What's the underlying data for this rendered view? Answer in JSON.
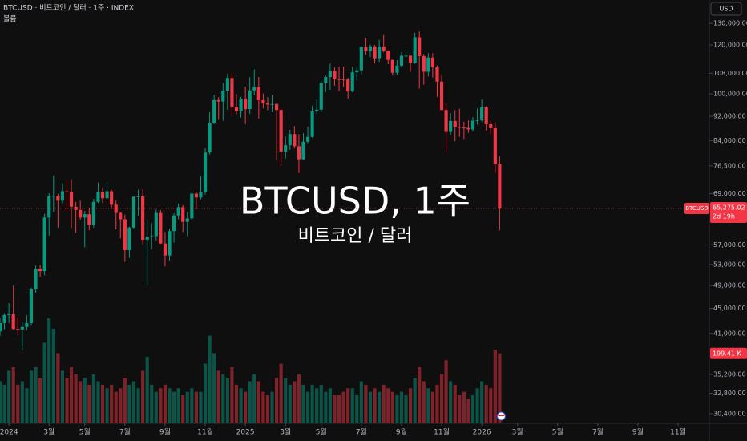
{
  "chart_data": {
    "type": "candlestick",
    "title": "BTCUSD · 비트코인 / 달러 · 1주 · INDEX",
    "volume_title": "볼륨",
    "watermark": "BTCUSD, 1주",
    "watermark_subtitle": "비트코인 / 달러",
    "currency": "USD",
    "symbol": "BTCUSD",
    "last_price": 65275.02,
    "last_price_label": "65,275.02",
    "countdown": "2d 19h",
    "volume_label": "199.41 K",
    "up_color": "#089981",
    "down_color": "#f23645",
    "log_scale": true,
    "ylim": [
      29330,
      141850
    ],
    "yticks": [
      {
        "value": 30400,
        "label": "30,400.00"
      },
      {
        "value": 32800,
        "label": "32,800.00"
      },
      {
        "value": 35200,
        "label": "35,200.00"
      },
      {
        "value": 41000,
        "label": "41,000.00"
      },
      {
        "value": 45000,
        "label": "45,000.00"
      },
      {
        "value": 49000,
        "label": "49,000.00"
      },
      {
        "value": 53000,
        "label": "53,000.00"
      },
      {
        "value": 57000,
        "label": "57,000.00"
      },
      {
        "value": 69000,
        "label": "69,000.00"
      },
      {
        "value": 76500,
        "label": "76,500.00"
      },
      {
        "value": 84000,
        "label": "84,000.00"
      },
      {
        "value": 92000,
        "label": "92,000.00"
      },
      {
        "value": 100000,
        "label": "100,000.00"
      },
      {
        "value": 108000,
        "label": "108,000.00"
      },
      {
        "value": 120000,
        "label": "120,000.00"
      },
      {
        "value": 130000,
        "label": "130,000.00"
      }
    ],
    "xlim": [
      -2,
      157
    ],
    "xticks": [
      {
        "value": 0,
        "label": "2024"
      },
      {
        "value": 9,
        "label": "3월"
      },
      {
        "value": 17,
        "label": "5월"
      },
      {
        "value": 26,
        "label": "7월"
      },
      {
        "value": 35,
        "label": "9월"
      },
      {
        "value": 44,
        "label": "11월"
      },
      {
        "value": 53,
        "label": "2025"
      },
      {
        "value": 62,
        "label": "3월"
      },
      {
        "value": 70,
        "label": "5월"
      },
      {
        "value": 79,
        "label": "7월"
      },
      {
        "value": 88,
        "label": "9월"
      },
      {
        "value": 97,
        "label": "11월"
      },
      {
        "value": 106,
        "label": "2026"
      },
      {
        "value": 114,
        "label": "3월"
      },
      {
        "value": 123,
        "label": "5월"
      },
      {
        "value": 132,
        "label": "7월"
      },
      {
        "value": 141,
        "label": "9월"
      },
      {
        "value": 150,
        "label": "11월"
      }
    ],
    "vlim": [
      0,
      320
    ],
    "x": [
      -2,
      -1,
      0,
      1,
      2,
      3,
      4,
      5,
      6,
      7,
      8,
      9,
      10,
      11,
      12,
      13,
      14,
      15,
      16,
      17,
      18,
      19,
      20,
      21,
      22,
      23,
      24,
      25,
      26,
      27,
      28,
      29,
      30,
      31,
      32,
      33,
      34,
      35,
      36,
      37,
      38,
      39,
      40,
      41,
      42,
      43,
      44,
      45,
      46,
      47,
      48,
      49,
      50,
      51,
      52,
      53,
      54,
      55,
      56,
      57,
      58,
      59,
      60,
      61,
      62,
      63,
      64,
      65,
      66,
      67,
      68,
      69,
      70,
      71,
      72,
      73,
      74,
      75,
      76,
      77,
      78,
      79,
      80,
      81,
      82,
      83,
      84,
      85,
      86,
      87,
      88,
      89,
      90,
      91,
      92,
      93,
      94,
      95,
      96,
      97,
      98,
      99,
      100,
      101,
      102,
      103,
      104,
      105,
      106,
      107,
      108,
      109,
      110
    ],
    "ohlc": [
      [
        41300,
        43400,
        40600,
        42600
      ],
      [
        42600,
        44200,
        41600,
        43900
      ],
      [
        43900,
        45900,
        42600,
        44100
      ],
      [
        44100,
        49000,
        41500,
        41700
      ],
      [
        41700,
        43500,
        40700,
        41600
      ],
      [
        41600,
        42800,
        38500,
        42000
      ],
      [
        42000,
        43900,
        41500,
        42600
      ],
      [
        42600,
        48600,
        42300,
        48300
      ],
      [
        48300,
        52800,
        47700,
        52100
      ],
      [
        52100,
        52900,
        50600,
        51700
      ],
      [
        51700,
        64000,
        50900,
        63100
      ],
      [
        63100,
        69100,
        59000,
        68300
      ],
      [
        68300,
        73800,
        64500,
        68400
      ],
      [
        68400,
        68900,
        60800,
        67200
      ],
      [
        67200,
        71700,
        66500,
        69600
      ],
      [
        69600,
        72700,
        64500,
        69400
      ],
      [
        69400,
        72800,
        60700,
        65700
      ],
      [
        65700,
        66900,
        59600,
        64900
      ],
      [
        64900,
        67200,
        62600,
        63100
      ],
      [
        63100,
        64700,
        56500,
        63900
      ],
      [
        63900,
        65500,
        60200,
        61500
      ],
      [
        61500,
        67700,
        60800,
        66900
      ],
      [
        66900,
        71900,
        66600,
        69300
      ],
      [
        69300,
        70600,
        66600,
        67800
      ],
      [
        67800,
        71900,
        67600,
        69600
      ],
      [
        69600,
        70000,
        65100,
        66200
      ],
      [
        66200,
        67200,
        60400,
        64200
      ],
      [
        64200,
        64500,
        58400,
        62700
      ],
      [
        62700,
        63800,
        53500,
        55900
      ],
      [
        55900,
        61000,
        54300,
        60800
      ],
      [
        60800,
        68300,
        60600,
        68200
      ],
      [
        68200,
        70000,
        63500,
        68300
      ],
      [
        68300,
        70100,
        57100,
        58100
      ],
      [
        58100,
        62700,
        49100,
        58700
      ],
      [
        58700,
        61800,
        56100,
        58900
      ],
      [
        58900,
        65000,
        57900,
        64200
      ],
      [
        64200,
        64900,
        57200,
        57300
      ],
      [
        57300,
        59800,
        52600,
        54800
      ],
      [
        54800,
        60600,
        53700,
        60000
      ],
      [
        60000,
        64100,
        57500,
        63600
      ],
      [
        63600,
        66500,
        62700,
        65600
      ],
      [
        65600,
        66100,
        59800,
        62100
      ],
      [
        62100,
        64500,
        58900,
        62900
      ],
      [
        62900,
        69400,
        62500,
        69000
      ],
      [
        69000,
        69500,
        65100,
        68000
      ],
      [
        68000,
        73600,
        67500,
        69400
      ],
      [
        69400,
        81800,
        68800,
        80400
      ],
      [
        80400,
        93400,
        79800,
        89800
      ],
      [
        89800,
        99600,
        89300,
        97700
      ],
      [
        97700,
        98800,
        90800,
        97200
      ],
      [
        97200,
        104000,
        90500,
        101200
      ],
      [
        101200,
        107800,
        94200,
        106100
      ],
      [
        106100,
        108300,
        92200,
        95200
      ],
      [
        95200,
        99900,
        92700,
        93700
      ],
      [
        93700,
        98900,
        91500,
        98300
      ],
      [
        98300,
        102700,
        89300,
        94500
      ],
      [
        94500,
        106400,
        92800,
        101300
      ],
      [
        101300,
        109500,
        99500,
        102600
      ],
      [
        102600,
        106500,
        91200,
        97700
      ],
      [
        97700,
        100100,
        94700,
        96500
      ],
      [
        96500,
        98800,
        94100,
        96100
      ],
      [
        96100,
        99500,
        93400,
        96300
      ],
      [
        96300,
        96500,
        78200,
        94200
      ],
      [
        94200,
        94400,
        76600,
        80700
      ],
      [
        80700,
        85300,
        78600,
        82600
      ],
      [
        82600,
        87500,
        81200,
        86100
      ],
      [
        86100,
        88700,
        81600,
        82300
      ],
      [
        82300,
        86100,
        74500,
        78400
      ],
      [
        78400,
        86400,
        78300,
        83700
      ],
      [
        83700,
        88500,
        83200,
        85200
      ],
      [
        85200,
        95700,
        84900,
        93700
      ],
      [
        93700,
        97900,
        92800,
        94300
      ],
      [
        94300,
        105000,
        93400,
        104100
      ],
      [
        104100,
        107100,
        100700,
        106500
      ],
      [
        106500,
        112000,
        101500,
        109000
      ],
      [
        109000,
        110400,
        103100,
        105700
      ],
      [
        105700,
        110700,
        101000,
        105600
      ],
      [
        105600,
        110700,
        102600,
        105500
      ],
      [
        105500,
        106100,
        98200,
        100900
      ],
      [
        100900,
        110600,
        100600,
        108400
      ],
      [
        108400,
        110500,
        105100,
        109200
      ],
      [
        109200,
        119500,
        107500,
        119100
      ],
      [
        119100,
        123200,
        115700,
        117300
      ],
      [
        117300,
        120200,
        114700,
        119400
      ],
      [
        119400,
        120000,
        112000,
        114200
      ],
      [
        114200,
        122300,
        112700,
        119300
      ],
      [
        119300,
        124500,
        116800,
        117400
      ],
      [
        117400,
        117600,
        111700,
        113500
      ],
      [
        113500,
        113600,
        107300,
        108200
      ],
      [
        108200,
        113400,
        107300,
        111100
      ],
      [
        111100,
        116800,
        110600,
        115300
      ],
      [
        115300,
        117900,
        114400,
        115300
      ],
      [
        115300,
        115400,
        108600,
        112200
      ],
      [
        112200,
        125600,
        111800,
        123500
      ],
      [
        123500,
        126200,
        102000,
        115100
      ],
      [
        115100,
        116000,
        103500,
        108600
      ],
      [
        108600,
        116400,
        106700,
        114500
      ],
      [
        114500,
        116400,
        106300,
        110500
      ],
      [
        110500,
        111200,
        98900,
        104700
      ],
      [
        104700,
        107500,
        94000,
        94200
      ],
      [
        94200,
        96600,
        80600,
        86800
      ],
      [
        86800,
        93100,
        85900,
        90400
      ],
      [
        90400,
        94200,
        83800,
        88400
      ],
      [
        88400,
        94600,
        85200,
        88200
      ],
      [
        88200,
        90200,
        84500,
        88100
      ],
      [
        88100,
        90600,
        86500,
        87600
      ],
      [
        87600,
        91700,
        86900,
        90500
      ],
      [
        90500,
        94700,
        89200,
        90600
      ],
      [
        90600,
        97900,
        90200,
        95100
      ],
      [
        95100,
        95500,
        87200,
        89300
      ],
      [
        89300,
        90500,
        86000,
        88000
      ],
      [
        88000,
        90000,
        74500,
        77000
      ],
      [
        77000,
        79300,
        60200,
        65275.02
      ]
    ],
    "volume": [
      120,
      110,
      150,
      160,
      110,
      120,
      100,
      150,
      160,
      130,
      230,
      300,
      270,
      200,
      150,
      130,
      160,
      140,
      120,
      130,
      110,
      140,
      120,
      110,
      100,
      110,
      90,
      100,
      130,
      110,
      120,
      100,
      150,
      190,
      110,
      90,
      100,
      110,
      100,
      90,
      100,
      80,
      90,
      100,
      90,
      90,
      170,
      250,
      200,
      150,
      140,
      130,
      160,
      110,
      100,
      90,
      120,
      140,
      120,
      90,
      80,
      90,
      130,
      170,
      130,
      110,
      120,
      140,
      110,
      90,
      110,
      100,
      110,
      90,
      100,
      80,
      80,
      90,
      100,
      100,
      80,
      120,
      110,
      90,
      100,
      90,
      110,
      100,
      90,
      80,
      90,
      80,
      100,
      130,
      160,
      120,
      100,
      90,
      110,
      140,
      180,
      120,
      110,
      80,
      90,
      70,
      80,
      100,
      120,
      110,
      100,
      210,
      199.41
    ]
  }
}
